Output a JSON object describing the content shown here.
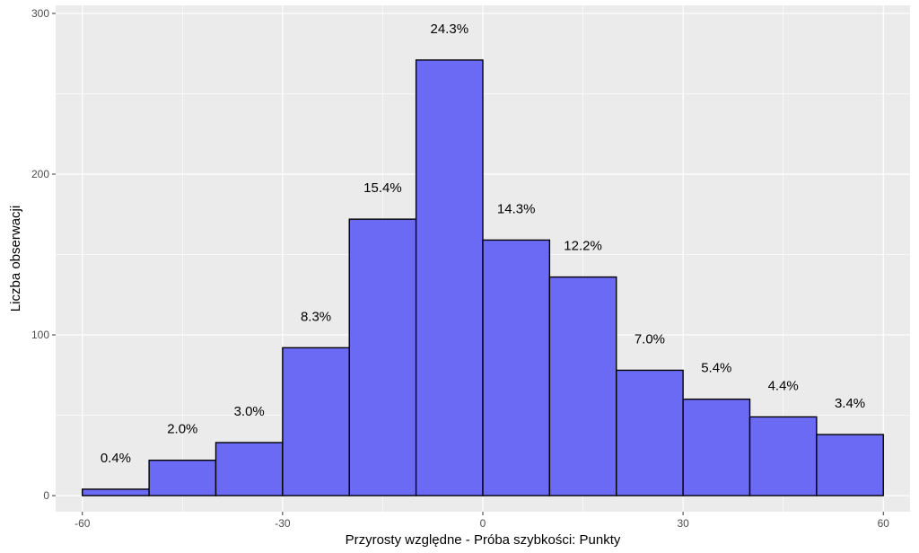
{
  "chart_data": {
    "type": "bar",
    "xlabel": "Przyrosty względne - Próba szybkości: Punkty",
    "ylabel": "Liczba obserwacji",
    "xlim": [
      -64,
      64
    ],
    "ylim": [
      -10,
      305
    ],
    "x_ticks": [
      -60,
      -30,
      0,
      30,
      60
    ],
    "x_tick_labels": [
      "-60",
      "-30",
      "0",
      "30",
      "60"
    ],
    "y_ticks": [
      0,
      100,
      200,
      300
    ],
    "y_tick_labels": [
      "0",
      "100",
      "200",
      "300"
    ],
    "grid": true,
    "bin_width": 10,
    "bins": [
      {
        "x0": -60,
        "x1": -50,
        "count": 4,
        "label": "0.4%"
      },
      {
        "x0": -50,
        "x1": -40,
        "count": 22,
        "label": "2.0%"
      },
      {
        "x0": -40,
        "x1": -30,
        "count": 33,
        "label": "3.0%"
      },
      {
        "x0": -30,
        "x1": -20,
        "count": 92,
        "label": "8.3%"
      },
      {
        "x0": -20,
        "x1": -10,
        "count": 172,
        "label": "15.4%"
      },
      {
        "x0": -10,
        "x1": 0,
        "count": 271,
        "label": "24.3%"
      },
      {
        "x0": 0,
        "x1": 10,
        "count": 159,
        "label": "14.3%"
      },
      {
        "x0": 10,
        "x1": 20,
        "count": 136,
        "label": "12.2%"
      },
      {
        "x0": 20,
        "x1": 30,
        "count": 78,
        "label": "7.0%"
      },
      {
        "x0": 30,
        "x1": 40,
        "count": 60,
        "label": "5.4%"
      },
      {
        "x0": 40,
        "x1": 50,
        "count": 49,
        "label": "4.4%"
      },
      {
        "x0": 50,
        "x1": 60,
        "count": 38,
        "label": "3.4%"
      }
    ],
    "colors": {
      "panel": "#ebebeb",
      "grid_major": "#ffffff",
      "bar_fill": "#6a6af5",
      "bar_stroke": "#000000"
    }
  }
}
